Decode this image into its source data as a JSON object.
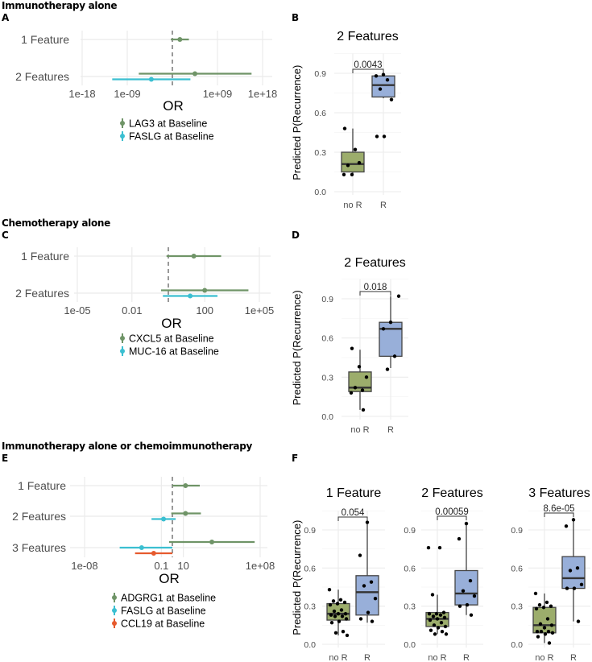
{
  "sections": [
    {
      "title": "Immunotherapy alone",
      "panel_left": "A",
      "panel_right": "B"
    },
    {
      "title": "Chemotherapy alone",
      "panel_left": "C",
      "panel_right": "D"
    },
    {
      "title": "Immunotherapy alone or chemoimmunotherapy",
      "panel_left": "E",
      "panel_right": "F"
    }
  ],
  "colors": {
    "green": "#6f9467",
    "cyan": "#3bbfd1",
    "red": "#e65a2e",
    "box_noR": "#9cad6c",
    "box_R": "#98afd9",
    "grid": "#ebebeb"
  },
  "chart_data": [
    {
      "id": "A",
      "type": "forest",
      "xlabel": "OR",
      "xscale": "log10",
      "xlim_log10": [
        -18.5,
        19
      ],
      "ticks": [
        {
          "log10": -18,
          "label": "1e-18"
        },
        {
          "log10": -9,
          "label": "1e-09"
        },
        {
          "log10": 9,
          "label": "1e+09"
        },
        {
          "log10": 18,
          "label": "1e+18"
        }
      ],
      "reference_line": 1,
      "rows": [
        {
          "label": "1 Feature",
          "entries": [
            {
              "series": "LAG3 at Baseline",
              "color": "#6f9467",
              "est_log10": 1.5,
              "lo_log10": -0.3,
              "hi_log10": 3.3
            }
          ]
        },
        {
          "label": "2 Features",
          "entries": [
            {
              "series": "LAG3 at Baseline",
              "color": "#6f9467",
              "est_log10": 4.5,
              "lo_log10": -6.7,
              "hi_log10": 15.8
            },
            {
              "series": "FASLG at Baseline",
              "color": "#3bbfd1",
              "est_log10": -4.2,
              "lo_log10": -12,
              "hi_log10": 3.6
            }
          ]
        }
      ],
      "legend": [
        {
          "label": "LAG3 at Baseline",
          "color": "#6f9467"
        },
        {
          "label": "FASLG at Baseline",
          "color": "#3bbfd1"
        }
      ]
    },
    {
      "id": "B",
      "type": "box",
      "title": "2 Features",
      "ylabel": "Predicted P(Recurrence)",
      "ylim": [
        0,
        1.05
      ],
      "yticks": [
        "0.0",
        "0.3",
        "0.6",
        "0.9"
      ],
      "p_value": "0.0043",
      "groups": [
        {
          "label": "no R",
          "q1": 0.15,
          "median": 0.21,
          "q3": 0.3,
          "whisker_lo": 0.13,
          "whisker_hi": 0.48,
          "points": [
            0.13,
            0.32,
            0.2,
            0.22,
            0.13,
            0.48
          ]
        },
        {
          "label": "R",
          "q1": 0.72,
          "median": 0.81,
          "q3": 0.88,
          "whisker_lo": 0.71,
          "whisker_hi": 0.89,
          "points": [
            0.89,
            0.88,
            0.85,
            0.78,
            0.7,
            0.42,
            0.42
          ]
        }
      ]
    },
    {
      "id": "C",
      "type": "forest",
      "xlabel": "OR",
      "xscale": "log10",
      "xlim_log10": [
        -5.2,
        5.6
      ],
      "ticks": [
        {
          "log10": -5,
          "label": "1e-05"
        },
        {
          "log10": -2,
          "label": "0.01"
        },
        {
          "log10": 2,
          "label": "100"
        },
        {
          "log10": 5,
          "label": "1e+05"
        }
      ],
      "reference_line": 1,
      "rows": [
        {
          "label": "1 Feature",
          "entries": [
            {
              "series": "CXCL5 at Baseline",
              "color": "#6f9467",
              "est_log10": 1.4,
              "lo_log10": -0.1,
              "hi_log10": 2.9
            }
          ]
        },
        {
          "label": "2 Features",
          "entries": [
            {
              "series": "CXCL5 at Baseline",
              "color": "#6f9467",
              "est_log10": 2.0,
              "lo_log10": -0.4,
              "hi_log10": 4.4
            },
            {
              "series": "MUC-16 at Baseline",
              "color": "#3bbfd1",
              "est_log10": 1.2,
              "lo_log10": -0.3,
              "hi_log10": 2.7
            }
          ]
        }
      ],
      "legend": [
        {
          "label": "CXCL5 at Baseline",
          "color": "#6f9467"
        },
        {
          "label": "MUC-16 at Baseline",
          "color": "#3bbfd1"
        }
      ]
    },
    {
      "id": "D",
      "type": "box",
      "title": "2 Features",
      "ylabel": "Predicted P(Recurrence)",
      "ylim": [
        0,
        1.05
      ],
      "yticks": [
        "0.0",
        "0.3",
        "0.6",
        "0.9"
      ],
      "p_value": "0.018",
      "groups": [
        {
          "label": "no R",
          "q1": 0.19,
          "median": 0.22,
          "q3": 0.34,
          "whisker_lo": 0.05,
          "whisker_hi": 0.51,
          "points": [
            0.18,
            0.2,
            0.22,
            0.3,
            0.38,
            0.52,
            0.05
          ]
        },
        {
          "label": "R",
          "q1": 0.46,
          "median": 0.67,
          "q3": 0.72,
          "whisker_lo": 0.37,
          "whisker_hi": 0.92,
          "points": [
            0.72,
            0.67,
            0.46,
            0.36,
            0.92
          ]
        }
      ]
    },
    {
      "id": "E",
      "type": "forest",
      "xlabel": "OR",
      "xscale": "log10",
      "xlim_log10": [
        -8.2,
        8.5
      ],
      "ticks": [
        {
          "log10": -8,
          "label": "1e-08"
        },
        {
          "log10": -1,
          "label": "0.1"
        },
        {
          "log10": 1,
          "label": "10"
        },
        {
          "log10": 8,
          "label": "1e+08"
        }
      ],
      "reference_line": 1,
      "rows": [
        {
          "label": "1 Feature",
          "entries": [
            {
              "series": "ADGRG1 at Baseline",
              "color": "#6f9467",
              "est_log10": 1.2,
              "lo_log10": 0,
              "hi_log10": 2.5
            }
          ]
        },
        {
          "label": "2 Features",
          "entries": [
            {
              "series": "ADGRG1 at Baseline",
              "color": "#6f9467",
              "est_log10": 1.2,
              "lo_log10": -0.1,
              "hi_log10": 2.6
            },
            {
              "series": "FASLG at Baseline",
              "color": "#3bbfd1",
              "est_log10": -0.8,
              "lo_log10": -1.9,
              "hi_log10": 0.3
            }
          ]
        },
        {
          "label": "3 Features",
          "entries": [
            {
              "series": "ADGRG1 at Baseline",
              "color": "#6f9467",
              "est_log10": 3.6,
              "lo_log10": -0.3,
              "hi_log10": 7.5
            },
            {
              "series": "FASLG at Baseline",
              "color": "#3bbfd1",
              "est_log10": -2.8,
              "lo_log10": -4.8,
              "hi_log10": 0
            },
            {
              "series": "CCL19 at Baseline",
              "color": "#e65a2e",
              "est_log10": -1.7,
              "lo_log10": -3.4,
              "hi_log10": 0
            }
          ]
        }
      ],
      "legend": [
        {
          "label": "ADGRG1 at Baseline",
          "color": "#6f9467"
        },
        {
          "label": "FASLG at Baseline",
          "color": "#3bbfd1"
        },
        {
          "label": "CCL19 at Baseline",
          "color": "#e65a2e"
        }
      ]
    },
    {
      "id": "F1",
      "type": "box",
      "title": "1 Feature",
      "ylabel": "Predicted P(Recurrence)",
      "ylim": [
        0,
        1.05
      ],
      "yticks": [
        "0.0",
        "0.3",
        "0.6",
        "0.9"
      ],
      "p_value": "0.054",
      "groups": [
        {
          "label": "no R",
          "q1": 0.19,
          "median": 0.24,
          "q3": 0.32,
          "whisker_lo": 0.07,
          "whisker_hi": 0.43,
          "points": [
            0.43,
            0.35,
            0.34,
            0.33,
            0.32,
            0.31,
            0.27,
            0.26,
            0.24,
            0.24,
            0.23,
            0.22,
            0.22,
            0.2,
            0.18,
            0.17,
            0.1,
            0.09,
            0.07
          ]
        },
        {
          "label": "R",
          "q1": 0.23,
          "median": 0.41,
          "q3": 0.54,
          "whisker_lo": 0.17,
          "whisker_hi": 0.96,
          "points": [
            0.96,
            0.7,
            0.49,
            0.46,
            0.36,
            0.25,
            0.2,
            0.18
          ]
        }
      ]
    },
    {
      "id": "F2",
      "type": "box",
      "title": "2 Features",
      "ylabel": "",
      "ylim": [
        0,
        1.05
      ],
      "yticks": [
        "0.0",
        "0.3",
        "0.6",
        "0.9"
      ],
      "p_value": "0.00059",
      "groups": [
        {
          "label": "no R",
          "q1": 0.14,
          "median": 0.2,
          "q3": 0.25,
          "whisker_lo": 0.08,
          "whisker_hi": 0.39,
          "points": [
            0.76,
            0.76,
            0.39,
            0.25,
            0.24,
            0.24,
            0.23,
            0.22,
            0.21,
            0.2,
            0.19,
            0.17,
            0.15,
            0.14,
            0.13,
            0.11,
            0.1,
            0.08,
            0.08
          ]
        },
        {
          "label": "R",
          "q1": 0.31,
          "median": 0.4,
          "q3": 0.58,
          "whisker_lo": 0.23,
          "whisker_hi": 0.95,
          "points": [
            0.95,
            0.83,
            0.5,
            0.42,
            0.38,
            0.31,
            0.3,
            0.23
          ]
        }
      ]
    },
    {
      "id": "F3",
      "type": "box",
      "title": "3 Features",
      "ylabel": "",
      "ylim": [
        0,
        1.05
      ],
      "yticks": [
        "0.0",
        "0.3",
        "0.6",
        "0.9"
      ],
      "p_value": "8.6e-05",
      "groups": [
        {
          "label": "no R",
          "q1": 0.09,
          "median": 0.15,
          "q3": 0.29,
          "whisker_lo": 0.01,
          "whisker_hi": 0.4,
          "points": [
            0.4,
            0.33,
            0.31,
            0.3,
            0.29,
            0.28,
            0.2,
            0.16,
            0.15,
            0.13,
            0.1,
            0.1,
            0.1,
            0.09,
            0.08,
            0.06,
            0.01
          ]
        },
        {
          "label": "R",
          "q1": 0.44,
          "median": 0.52,
          "q3": 0.69,
          "whisker_lo": 0.18,
          "whisker_hi": 0.97,
          "points": [
            0.98,
            0.93,
            0.6,
            0.58,
            0.47,
            0.44,
            0.44,
            0.18
          ]
        }
      ]
    }
  ]
}
